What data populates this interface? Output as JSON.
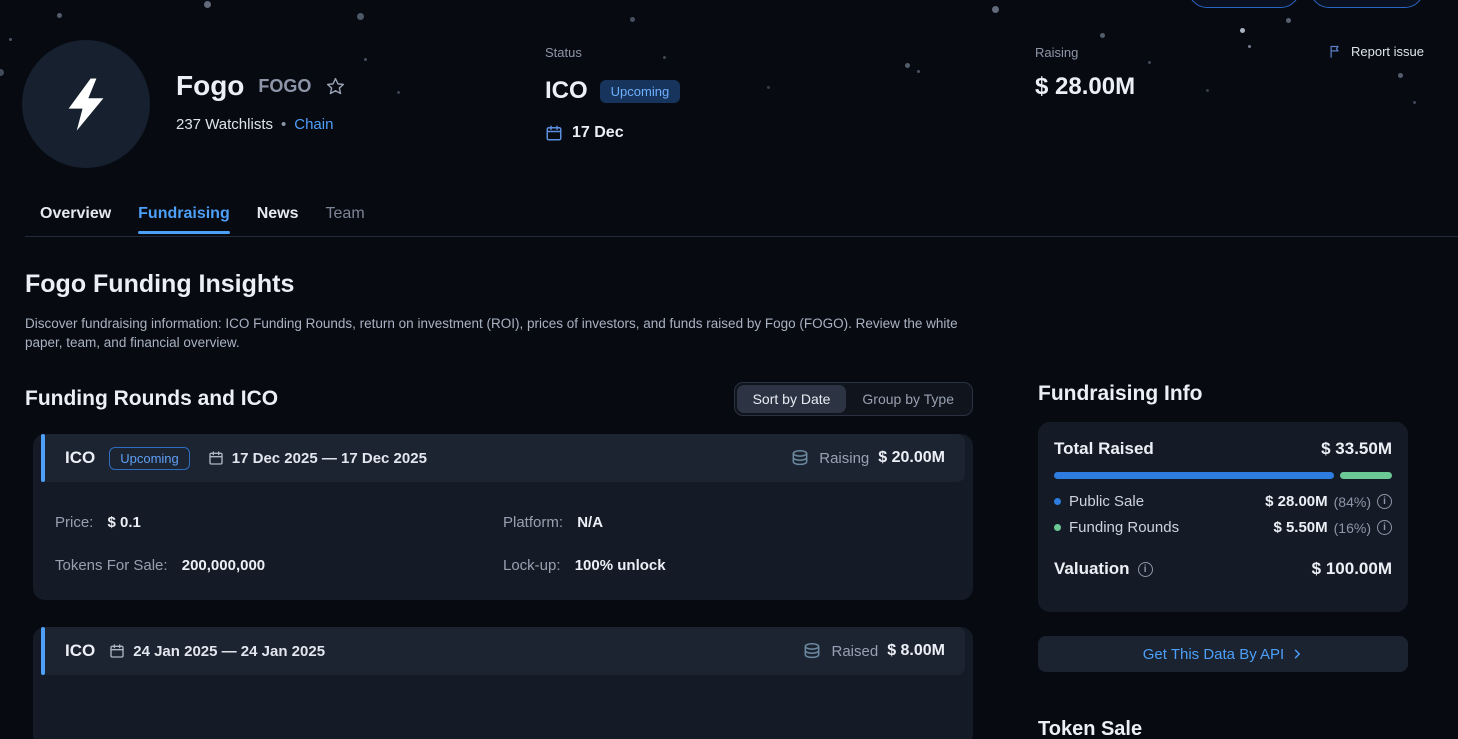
{
  "colors": {
    "bg": "#070a11",
    "card": "#151b26",
    "card-strip": "#1d2431",
    "text": "#eceff5",
    "muted": "#8d96a8",
    "accent": "#4d9ff8",
    "progress-blue": "#2e7ce0",
    "progress-green": "#6cc894",
    "border": "#232a39"
  },
  "header": {
    "coin_name": "Fogo",
    "ticker": "FOGO",
    "watchlists": "237 Watchlists",
    "dot_separator": "•",
    "chain_link": "Chain",
    "status_label": "Status",
    "status_value": "ICO",
    "status_badge": "Upcoming",
    "status_date": "17 Dec",
    "raising_label": "Raising",
    "raising_value": "$ 28.00M",
    "report_issue": "Report issue"
  },
  "tabs": [
    {
      "label": "Overview",
      "active": false
    },
    {
      "label": "Fundraising",
      "active": true
    },
    {
      "label": "News",
      "active": false
    },
    {
      "label": "Team",
      "active": false
    }
  ],
  "insights": {
    "title": "Fogo Funding Insights",
    "description": "Discover fundraising information: ICO Funding Rounds, return on investment (ROI), prices of investors, and funds raised by Fogo (FOGO). Review the white paper, team, and financial overview."
  },
  "rounds_section": {
    "title": "Funding Rounds and ICO",
    "sort_by_date": "Sort by Date",
    "group_by_type": "Group by Type",
    "cards": [
      {
        "type": "ICO",
        "badge": "Upcoming",
        "dates": "17 Dec 2025 — 17 Dec 2025",
        "amount_label": "Raising",
        "amount": "$ 20.00M",
        "price_label": "Price:",
        "price": "$ 0.1",
        "platform_label": "Platform:",
        "platform": "N/A",
        "tokens_label": "Tokens For Sale:",
        "tokens": "200,000,000",
        "lockup_label": "Lock-up:",
        "lockup": "100% unlock"
      },
      {
        "type": "ICO",
        "dates": "24 Jan 2025 — 24 Jan 2025",
        "amount_label": "Raised",
        "amount": "$ 8.00M"
      }
    ]
  },
  "sidebar": {
    "title": "Fundraising Info",
    "total_raised_label": "Total Raised",
    "total_raised": "$ 33.50M",
    "progress": {
      "blue_pct": 84,
      "green_pct": 16
    },
    "public_sale_label": "Public Sale",
    "public_sale_value": "$ 28.00M",
    "public_sale_pct": "(84%)",
    "funding_rounds_label": "Funding Rounds",
    "funding_rounds_value": "$ 5.50M",
    "funding_rounds_pct": "(16%)",
    "valuation_label": "Valuation",
    "valuation": "$ 100.00M",
    "api_button": "Get This Data By API",
    "partial_heading": "Token Sale"
  }
}
